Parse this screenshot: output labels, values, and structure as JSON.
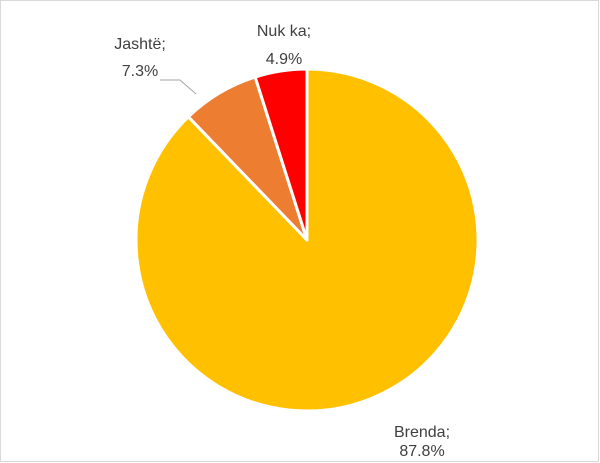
{
  "chart_data": {
    "type": "pie",
    "categories": [
      "Brenda;",
      "Jashtë;",
      "Nuk ka;"
    ],
    "values": [
      87.8,
      7.3,
      4.9
    ],
    "value_labels": [
      "87.8%",
      "7.3%",
      "4.9%"
    ],
    "colors": [
      "#FFC000",
      "#ED7D31",
      "#FF0000"
    ]
  }
}
